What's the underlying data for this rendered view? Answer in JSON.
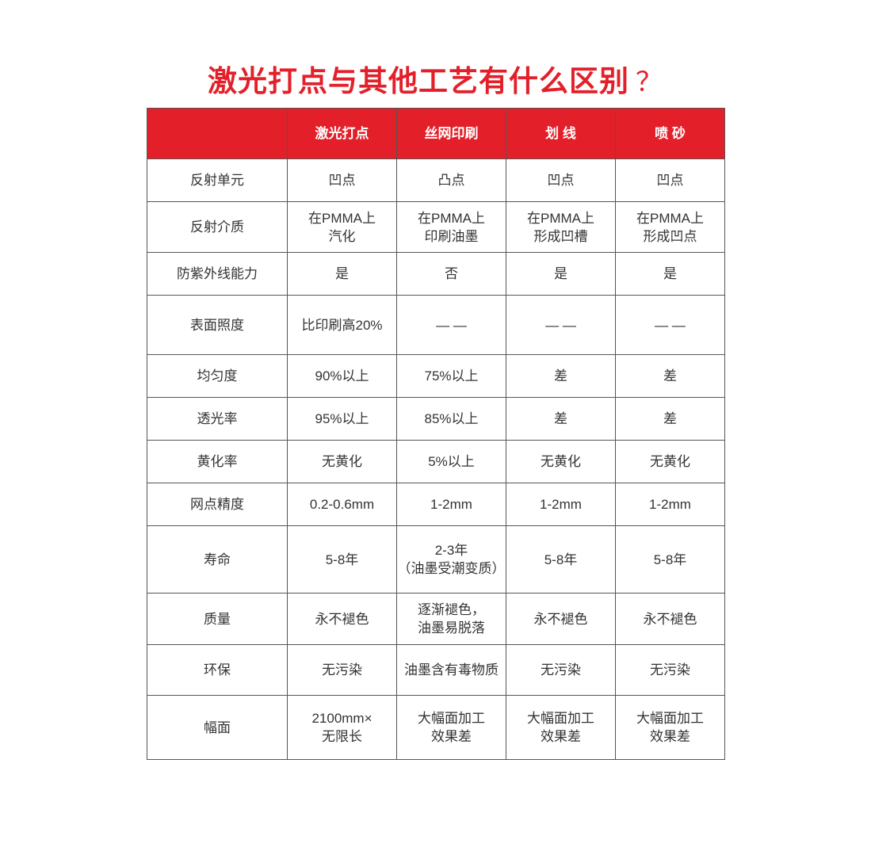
{
  "title": "激光打点与其他工艺有什么区别",
  "title_mark": "？",
  "accent_color": "#e3202a",
  "table": {
    "headers": [
      "",
      "激光打点",
      "丝网印刷",
      "划 线",
      "喷 砂"
    ],
    "rows": [
      {
        "label": "反射单元",
        "cells": [
          "凹点",
          "凸点",
          "凹点",
          "凹点"
        ]
      },
      {
        "label": "反射介质",
        "cells": [
          "在PMMA上\n汽化",
          "在PMMA上\n印刷油墨",
          "在PMMA上\n形成凹槽",
          "在PMMA上\n形成凹点"
        ]
      },
      {
        "label": "防紫外线能力",
        "cells": [
          "是",
          "否",
          "是",
          "是"
        ]
      },
      {
        "label": "表面照度",
        "cells": [
          "比印刷高20%",
          "— —",
          "— —",
          "— —"
        ]
      },
      {
        "label": "均匀度",
        "cells": [
          "90%以上",
          "75%以上",
          "差",
          "差"
        ]
      },
      {
        "label": "透光率",
        "cells": [
          "95%以上",
          "85%以上",
          "差",
          "差"
        ]
      },
      {
        "label": "黄化率",
        "cells": [
          "无黄化",
          "5%以上",
          "无黄化",
          "无黄化"
        ]
      },
      {
        "label": "网点精度",
        "cells": [
          "0.2-0.6mm",
          "1-2mm",
          "1-2mm",
          "1-2mm"
        ]
      },
      {
        "label": "寿命",
        "cells": [
          "5-8年",
          "2-3年\n（油墨受潮变质）",
          "5-8年",
          "5-8年"
        ]
      },
      {
        "label": "质量",
        "cells": [
          "永不褪色",
          "逐渐褪色，\n油墨易脱落",
          "永不褪色",
          "永不褪色"
        ]
      },
      {
        "label": "环保",
        "cells": [
          "无污染",
          "油墨含有毒物质",
          "无污染",
          "无污染"
        ]
      },
      {
        "label": "幅面",
        "cells": [
          "2100mm×\n无限长",
          "大幅面加工\n效果差",
          "大幅面加工\n效果差",
          "大幅面加工\n效果差"
        ]
      }
    ]
  }
}
